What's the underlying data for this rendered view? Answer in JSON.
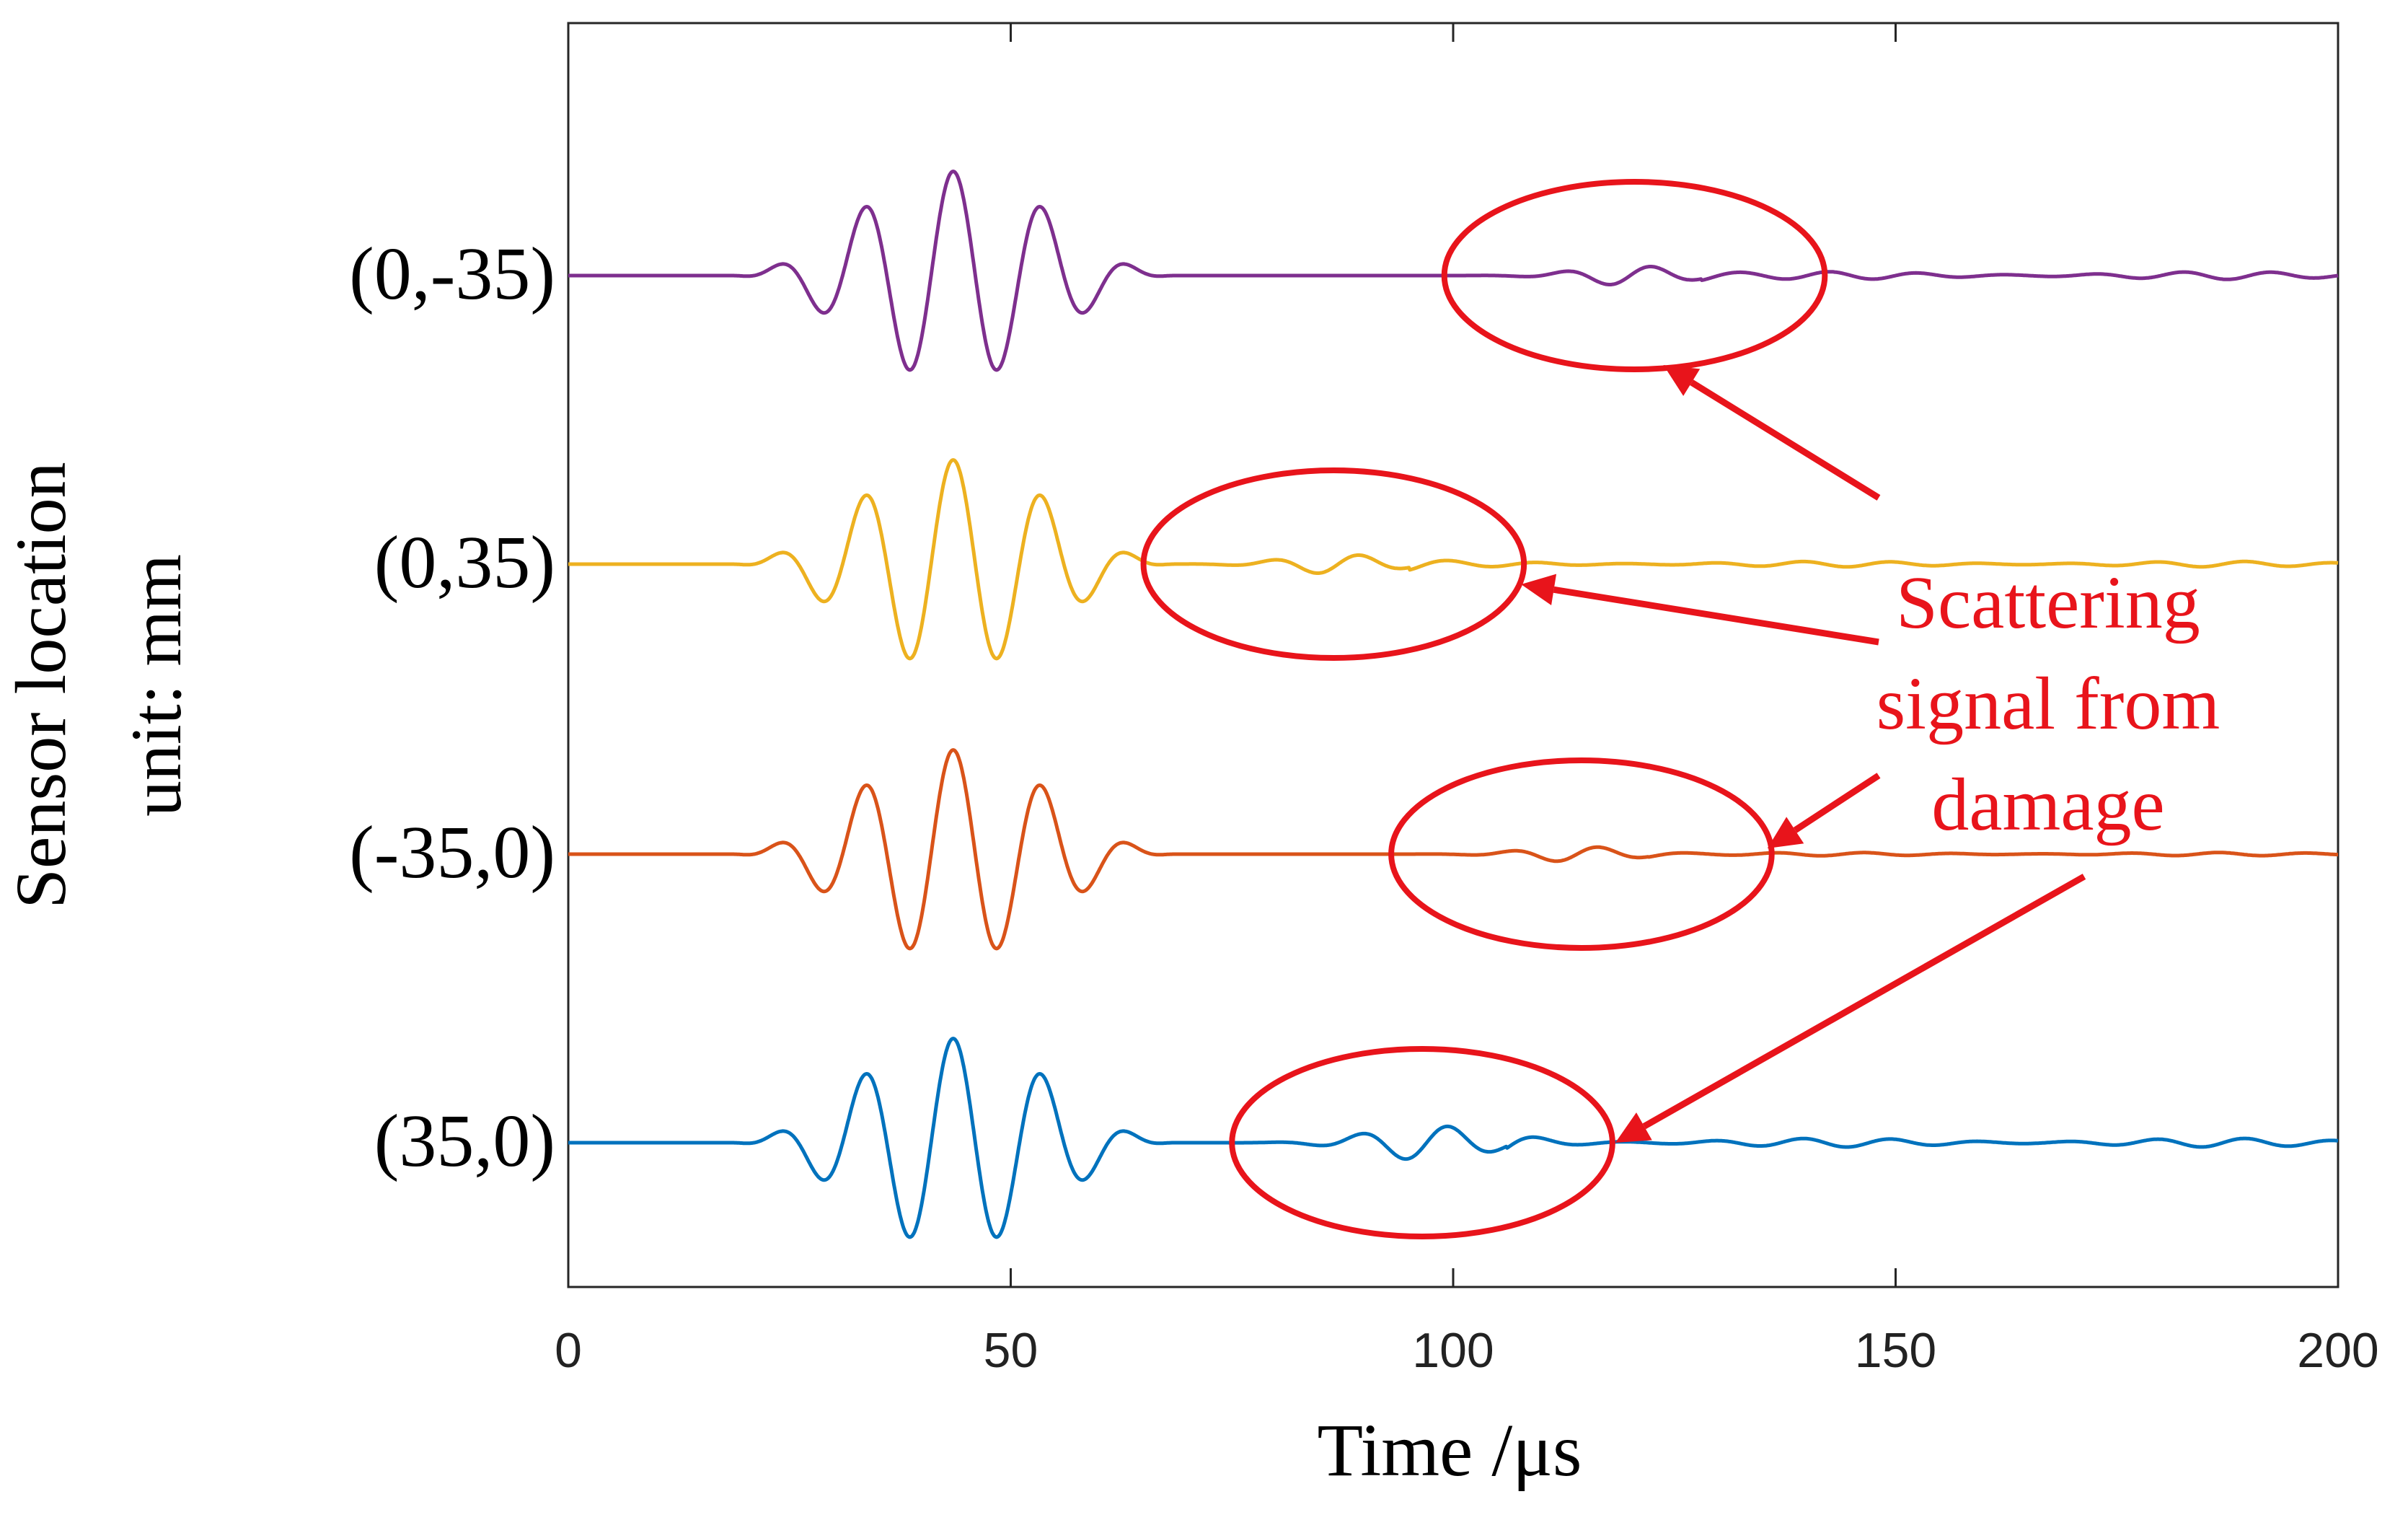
{
  "chart_data": {
    "type": "line",
    "title": "",
    "xlabel": "Time /μs",
    "ylabel_lines": [
      "Sensor location",
      "unit: mm"
    ],
    "xlim": [
      0,
      200
    ],
    "xticks": [
      0,
      50,
      100,
      150,
      200
    ],
    "xtick_labels": [
      "0",
      "50",
      "100",
      "150",
      "200"
    ],
    "grid": false,
    "legend": "none",
    "series": [
      {
        "name": "(0,-35)",
        "color": "#7e2f8e",
        "direct_wave": {
          "center": 43.5,
          "period": 10,
          "amplitude": 1.0
        },
        "scatter_packet": {
          "center": 120,
          "width": 16,
          "amplitude": 0.09
        },
        "tail_ripple_amplitude": 0.035
      },
      {
        "name": "(0,35)",
        "color": "#edb120",
        "direct_wave": {
          "center": 43.5,
          "period": 10,
          "amplitude": 1.0
        },
        "scatter_packet": {
          "center": 87,
          "width": 16,
          "amplitude": 0.09
        },
        "tail_ripple_amplitude": 0.025
      },
      {
        "name": "(-35,0)",
        "color": "#d95319",
        "direct_wave": {
          "center": 43.5,
          "period": 10,
          "amplitude": 1.0
        },
        "scatter_packet": {
          "center": 114,
          "width": 16,
          "amplitude": 0.07
        },
        "tail_ripple_amplitude": 0.015
      },
      {
        "name": "(35,0)",
        "color": "#0072bd",
        "direct_wave": {
          "center": 43.5,
          "period": 10,
          "amplitude": 1.0
        },
        "scatter_packet": {
          "center": 97,
          "width": 18,
          "amplitude": 0.16
        },
        "tail_ripple_amplitude": 0.04
      }
    ],
    "annotations": {
      "text_lines": [
        "Scattering",
        "signal from",
        "damage"
      ],
      "color": "#e8141b",
      "highlight_windows": [
        {
          "series": "(0,-35)",
          "x_range": [
            99,
            142
          ]
        },
        {
          "series": "(0,35)",
          "x_range": [
            65,
            108
          ]
        },
        {
          "series": "(-35,0)",
          "x_range": [
            93,
            136
          ]
        },
        {
          "series": "(35,0)",
          "x_range": [
            75,
            118
          ]
        }
      ]
    }
  }
}
